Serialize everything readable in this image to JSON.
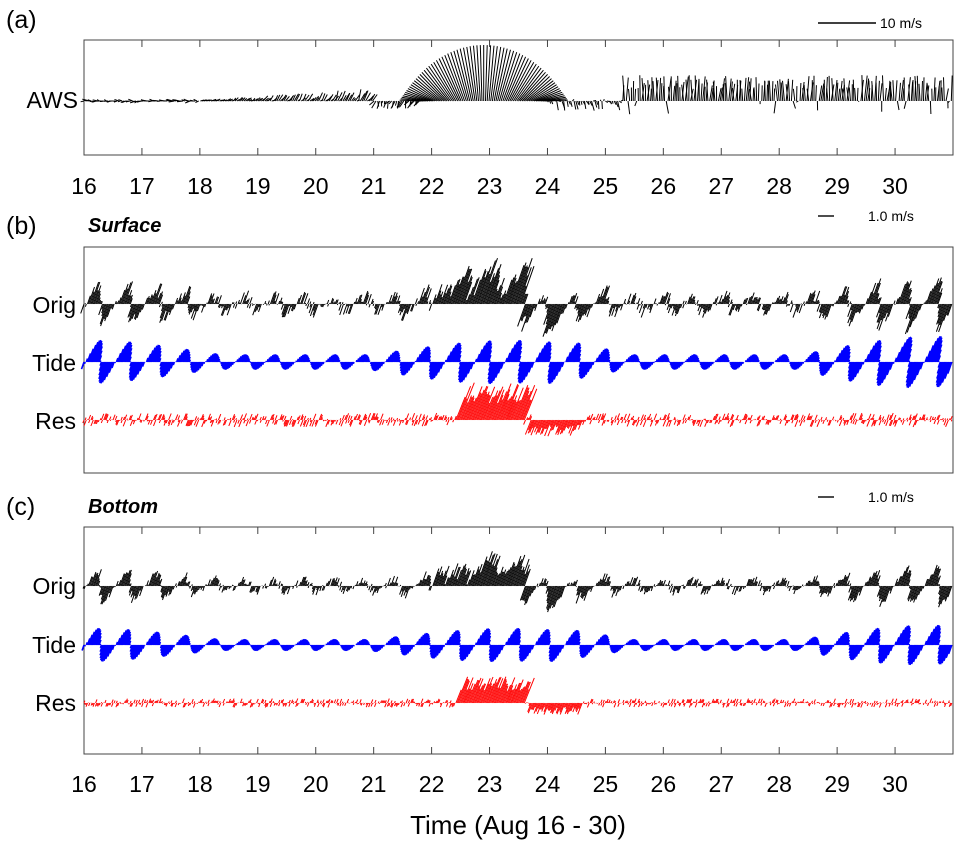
{
  "chart_data": {
    "type": "vector-stick-plot",
    "xlabel": "Time (Aug 16 - 30)",
    "x_ticks": [
      "16",
      "17",
      "18",
      "19",
      "20",
      "21",
      "22",
      "23",
      "24",
      "25",
      "26",
      "27",
      "28",
      "29",
      "30"
    ],
    "x_range": [
      16,
      31
    ],
    "panels": [
      {
        "letter": "(a)",
        "title": "",
        "scale": {
          "label": "10 m/s",
          "value": 10
        },
        "rows": [
          {
            "label": "AWS",
            "color": "#000000",
            "description": "wind vectors, mostly weak, strong northward/north-east winds Aug 22-24"
          }
        ]
      },
      {
        "letter": "(b)",
        "title": "Surface",
        "scale": {
          "label": "1.0 m/s",
          "value": 1.0
        },
        "rows": [
          {
            "label": "Orig",
            "color": "#000000"
          },
          {
            "label": "Tide",
            "color": "#0000ff"
          },
          {
            "label": "Res",
            "color": "#ff0000"
          }
        ]
      },
      {
        "letter": "(c)",
        "title": "Bottom",
        "scale": {
          "label": "1.0 m/s",
          "value": 1.0
        },
        "rows": [
          {
            "label": "Orig",
            "color": "#000000"
          },
          {
            "label": "Tide",
            "color": "#0000ff"
          },
          {
            "label": "Res",
            "color": "#ff0000"
          }
        ]
      }
    ]
  }
}
